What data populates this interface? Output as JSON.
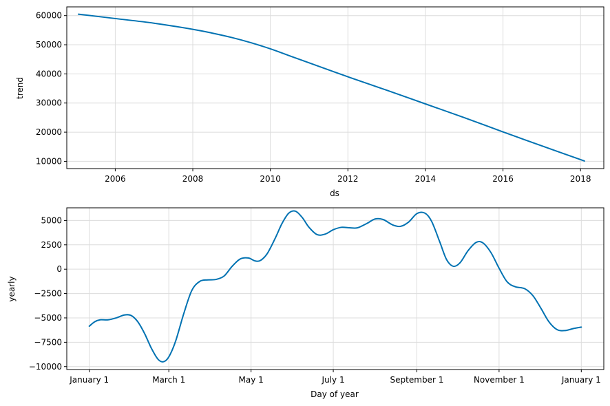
{
  "chart_data": [
    {
      "type": "line",
      "title": "",
      "xlabel": "ds",
      "ylabel": "trend",
      "grid": true,
      "x_range_years": [
        2004.75,
        2018.6
      ],
      "ylim": [
        7500,
        63000
      ],
      "x_ticks": [
        {
          "value": 2006,
          "label": "2006"
        },
        {
          "value": 2008,
          "label": "2008"
        },
        {
          "value": 2010,
          "label": "2010"
        },
        {
          "value": 2012,
          "label": "2012"
        },
        {
          "value": 2014,
          "label": "2014"
        },
        {
          "value": 2016,
          "label": "2016"
        },
        {
          "value": 2018,
          "label": "2018"
        }
      ],
      "y_ticks": [
        {
          "value": 10000,
          "label": "10000"
        },
        {
          "value": 20000,
          "label": "20000"
        },
        {
          "value": 30000,
          "label": "30000"
        },
        {
          "value": 40000,
          "label": "40000"
        },
        {
          "value": 50000,
          "label": "50000"
        },
        {
          "value": 60000,
          "label": "60000"
        }
      ],
      "series": [
        {
          "color": "#0072B2",
          "points": [
            [
              2005.05,
              60500
            ],
            [
              2006.0,
              59000
            ],
            [
              2007.0,
              57400
            ],
            [
              2008.0,
              55300
            ],
            [
              2008.5,
              54000
            ],
            [
              2009.0,
              52500
            ],
            [
              2009.5,
              50700
            ],
            [
              2010.0,
              48600
            ],
            [
              2010.5,
              46200
            ],
            [
              2011.0,
              43800
            ],
            [
              2012.0,
              39000
            ],
            [
              2013.0,
              34400
            ],
            [
              2014.0,
              29700
            ],
            [
              2015.0,
              25000
            ],
            [
              2016.0,
              20100
            ],
            [
              2017.0,
              15300
            ],
            [
              2018.1,
              10100
            ]
          ]
        }
      ]
    },
    {
      "type": "line",
      "title": "",
      "xlabel": "Day of year",
      "ylabel": "yearly",
      "grid": true,
      "x_range_days": [
        -16.7,
        381.7
      ],
      "ylim": [
        -10300,
        6300
      ],
      "x_ticks": [
        {
          "value": 0,
          "label": "January 1"
        },
        {
          "value": 59,
          "label": "March 1"
        },
        {
          "value": 120,
          "label": "May 1"
        },
        {
          "value": 181,
          "label": "July 1"
        },
        {
          "value": 243,
          "label": "September 1"
        },
        {
          "value": 304,
          "label": "November 1"
        },
        {
          "value": 365,
          "label": "January 1"
        }
      ],
      "y_ticks": [
        {
          "value": 5000,
          "label": "5000"
        },
        {
          "value": 2500,
          "label": "2500"
        },
        {
          "value": 0,
          "label": "0"
        },
        {
          "value": -2500,
          "label": "−2500"
        },
        {
          "value": -5000,
          "label": "−5000"
        },
        {
          "value": -7500,
          "label": "−7500"
        },
        {
          "value": -10000,
          "label": "−10000"
        }
      ],
      "series": [
        {
          "color": "#0072B2",
          "points": [
            [
              0,
              -5850
            ],
            [
              4,
              -5400
            ],
            [
              8,
              -5200
            ],
            [
              14,
              -5200
            ],
            [
              20,
              -5000
            ],
            [
              26,
              -4700
            ],
            [
              31,
              -4750
            ],
            [
              36,
              -5400
            ],
            [
              41,
              -6600
            ],
            [
              46,
              -8100
            ],
            [
              51,
              -9250
            ],
            [
              55,
              -9500
            ],
            [
              59,
              -9000
            ],
            [
              64,
              -7400
            ],
            [
              70,
              -4600
            ],
            [
              76,
              -2200
            ],
            [
              82,
              -1250
            ],
            [
              88,
              -1100
            ],
            [
              94,
              -1050
            ],
            [
              100,
              -700
            ],
            [
              106,
              300
            ],
            [
              112,
              1050
            ],
            [
              118,
              1150
            ],
            [
              123,
              850
            ],
            [
              127,
              900
            ],
            [
              132,
              1600
            ],
            [
              138,
              3200
            ],
            [
              143,
              4700
            ],
            [
              148,
              5750
            ],
            [
              153,
              5950
            ],
            [
              158,
              5300
            ],
            [
              163,
              4300
            ],
            [
              169,
              3550
            ],
            [
              175,
              3600
            ],
            [
              181,
              4050
            ],
            [
              187,
              4300
            ],
            [
              193,
              4250
            ],
            [
              199,
              4250
            ],
            [
              206,
              4700
            ],
            [
              212,
              5150
            ],
            [
              218,
              5100
            ],
            [
              225,
              4550
            ],
            [
              231,
              4400
            ],
            [
              237,
              4850
            ],
            [
              243,
              5700
            ],
            [
              249,
              5750
            ],
            [
              254,
              4900
            ],
            [
              260,
              2800
            ],
            [
              265,
              1000
            ],
            [
              270,
              300
            ],
            [
              275,
              650
            ],
            [
              281,
              1900
            ],
            [
              287,
              2750
            ],
            [
              292,
              2700
            ],
            [
              298,
              1700
            ],
            [
              304,
              100
            ],
            [
              310,
              -1300
            ],
            [
              316,
              -1800
            ],
            [
              323,
              -2000
            ],
            [
              329,
              -2700
            ],
            [
              335,
              -4000
            ],
            [
              341,
              -5400
            ],
            [
              347,
              -6200
            ],
            [
              353,
              -6300
            ],
            [
              359,
              -6100
            ],
            [
              365,
              -5950
            ]
          ]
        }
      ]
    }
  ]
}
